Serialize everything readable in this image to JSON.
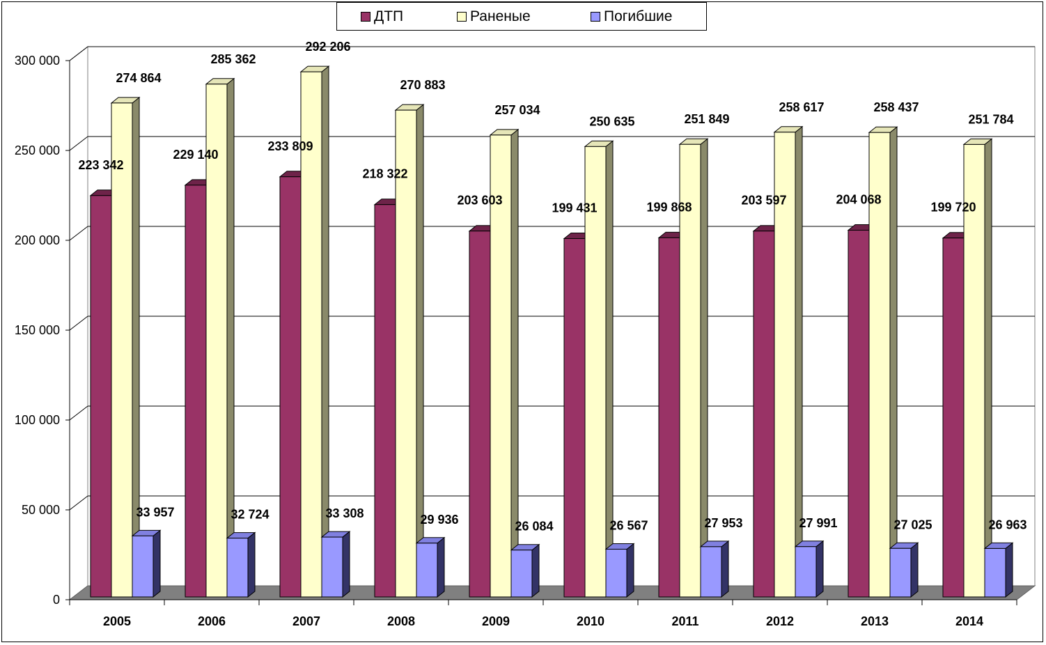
{
  "chart_data": {
    "type": "bar",
    "title": "",
    "xlabel": "",
    "ylabel": "",
    "ylim": [
      0,
      300000
    ],
    "yticks": [
      0,
      50000,
      100000,
      150000,
      200000,
      250000,
      300000
    ],
    "ytick_labels": [
      "0",
      "50 000",
      "100 000",
      "150 000",
      "200 000",
      "250 000",
      "300 000"
    ],
    "grid": true,
    "legend_position": "top",
    "categories": [
      "2005",
      "2006",
      "2007",
      "2008",
      "2009",
      "2010",
      "2011",
      "2012",
      "2013",
      "2014"
    ],
    "series": [
      {
        "name": "ДТП",
        "color": "#993366",
        "values": [
          223342,
          229140,
          233809,
          218322,
          203603,
          199431,
          199868,
          203597,
          204068,
          199720
        ],
        "labels": [
          "223 342",
          "229 140",
          "233 809",
          "218 322",
          "203 603",
          "199 431",
          "199 868",
          "203 597",
          "204 068",
          "199 720"
        ]
      },
      {
        "name": "Раненые",
        "color": "#FFFFCC",
        "values": [
          274864,
          285362,
          292206,
          270883,
          257034,
          250635,
          251849,
          258617,
          258437,
          251784
        ],
        "labels": [
          "274 864",
          "285 362",
          "292 206",
          "270 883",
          "257 034",
          "250 635",
          "251 849",
          "258 617",
          "258 437",
          "251 784"
        ]
      },
      {
        "name": "Погибшие",
        "color": "#9999FF",
        "values": [
          33957,
          32724,
          33308,
          29936,
          26084,
          26567,
          27953,
          27991,
          27025,
          26963
        ],
        "labels": [
          "33 957",
          "32 724",
          "33 308",
          "29 936",
          "26 084",
          "26 567",
          "27 953",
          "27 991",
          "27 025",
          "26 963"
        ]
      }
    ]
  }
}
